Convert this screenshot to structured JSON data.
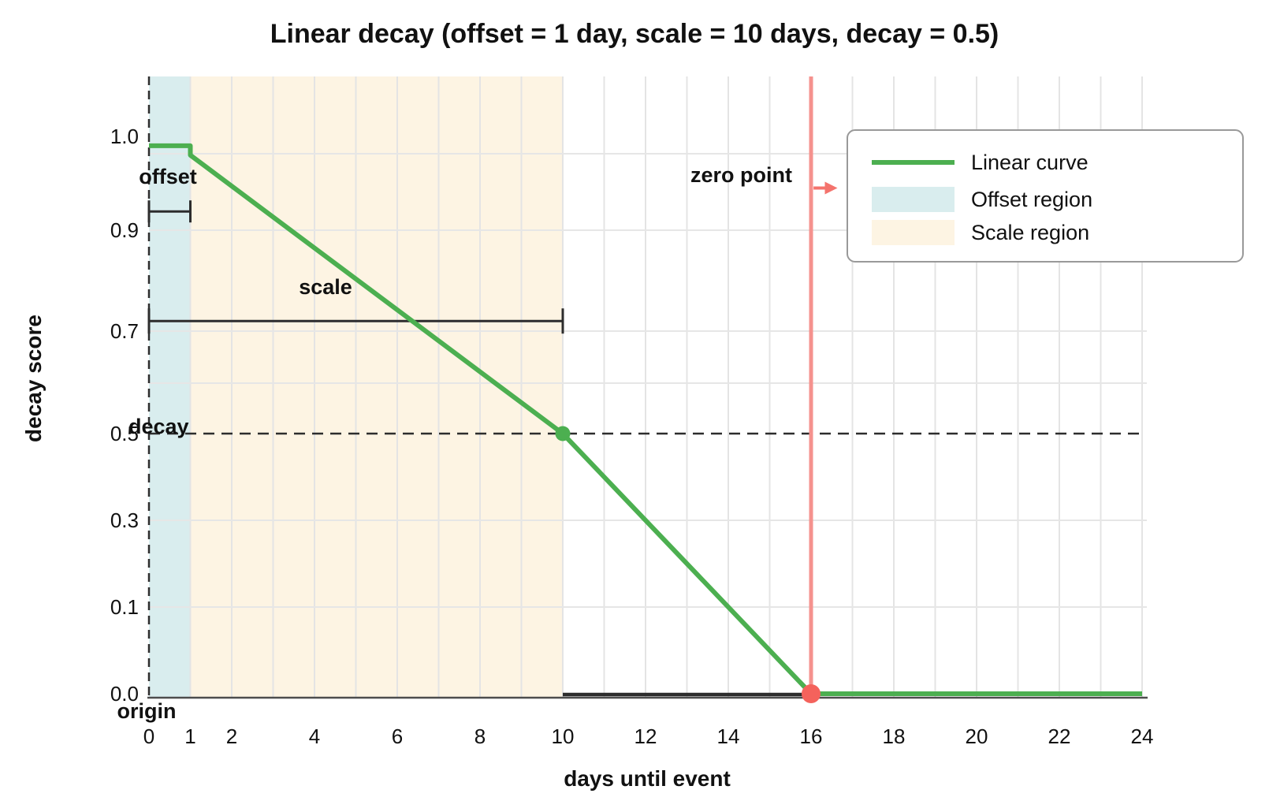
{
  "title": "Linear decay (offset = 1 day, scale = 10 days, decay = 0.5)",
  "x_axis": {
    "label": "days until event",
    "ticks": [
      "0",
      "1",
      "2",
      "4",
      "6",
      "8",
      "10",
      "12",
      "14",
      "16",
      "18",
      "20",
      "22",
      "24"
    ],
    "tick_values": [
      0,
      1,
      2,
      4,
      6,
      8,
      10,
      12,
      14,
      16,
      18,
      20,
      22,
      24
    ],
    "range": [
      0,
      24
    ]
  },
  "y_axis": {
    "label": "decay score",
    "ticks": [
      "1.0",
      "0.9",
      "0.7",
      "0.5",
      "0.3",
      "0.1",
      "0.0"
    ],
    "tick_values": [
      1.0,
      0.9,
      0.7,
      0.5,
      0.3,
      0.1,
      0.0
    ]
  },
  "legend": {
    "items": [
      {
        "label": "Linear curve",
        "type": "line",
        "color": "#4caf50"
      },
      {
        "label": "Offset region",
        "type": "patch",
        "color": "#d9edee"
      },
      {
        "label": "Scale region",
        "type": "patch",
        "color": "#fdf4e3"
      }
    ]
  },
  "annotations": {
    "offset": {
      "text": "offset"
    },
    "scale": {
      "text": "scale"
    },
    "decay": {
      "text": "decay"
    },
    "zero_point": {
      "text": "zero point"
    },
    "origin": {
      "text": "origin"
    }
  },
  "chart_data": {
    "type": "line",
    "title": "Linear decay (offset = 1 day, scale = 10 days, decay = 0.5)",
    "xlabel": "days until event",
    "ylabel": "decay score",
    "xlim": [
      0,
      24
    ],
    "grid": true,
    "legend_position": "upper right",
    "series": [
      {
        "name": "Linear curve",
        "color": "#4caf50",
        "points": [
          [
            0,
            0.99
          ],
          [
            1,
            0.99
          ],
          [
            1,
            0.98
          ],
          [
            10,
            0.5
          ],
          [
            16,
            0
          ],
          [
            24,
            0
          ]
        ]
      }
    ],
    "markers": [
      {
        "x": 10,
        "y": 0.5,
        "color": "#4caf50",
        "name": "decay-point"
      },
      {
        "x": 16,
        "y": 0.0,
        "color": "#f4625c",
        "name": "zero-point"
      }
    ],
    "regions": [
      {
        "name": "Offset region",
        "x0": 0,
        "x1": 1,
        "color": "#d9edee"
      },
      {
        "name": "Scale region",
        "x0": 1,
        "x1": 10,
        "color": "#fdf4e3"
      }
    ],
    "zero_point_line": {
      "x": 16,
      "color": "#f5928e"
    },
    "decay_dashed_line": {
      "y": 0.5
    },
    "zero_segment": {
      "x0": 10,
      "x1": 16,
      "y": 0
    },
    "brackets": [
      {
        "name": "offset",
        "x0": 0,
        "x1": 1,
        "y": 0.92
      },
      {
        "name": "scale",
        "x0": 0,
        "x1": 10,
        "y": 0.72
      }
    ],
    "arrow": {
      "x0": 16.06,
      "x1": 16.6,
      "y": 0.945,
      "color": "#f4736d"
    },
    "key_values": {
      "offset_days": 1,
      "scale_days": 10,
      "decay": 0.5,
      "zero_point_day": 16,
      "origin_day": 0
    }
  }
}
